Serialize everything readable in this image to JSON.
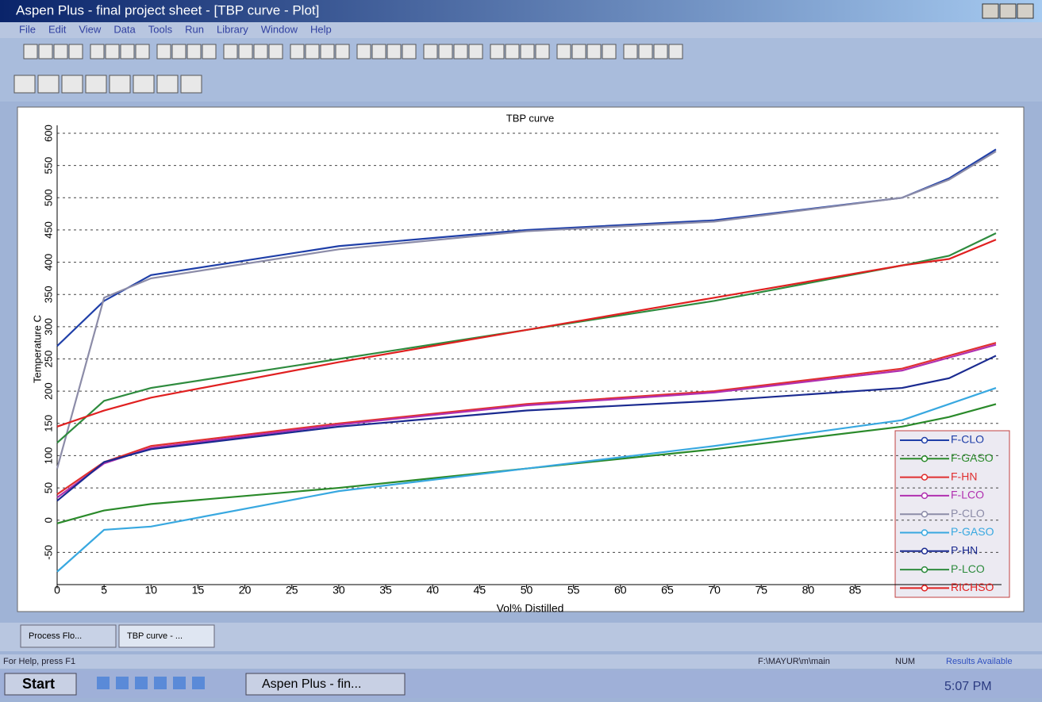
{
  "window": {
    "title": "Aspen Plus - final project sheet - [TBP curve - Plot]",
    "menu": [
      "File",
      "Edit",
      "View",
      "Data",
      "Tools",
      "Run",
      "Library",
      "Window",
      "Help"
    ],
    "tabs": [
      "Process Flo...",
      "TBP curve - ..."
    ],
    "status": [
      "For Help, press F1",
      "F:\\MAYUR\\m\\main",
      "NUM",
      "Results Available"
    ],
    "taskbar": {
      "start": "Start",
      "task": "Aspen Plus - fin...",
      "clock": "5:07 PM"
    }
  },
  "chart_data": {
    "type": "line",
    "title": "TBP curve",
    "x_label": "Vol% Distilled",
    "y_label": "Temperature C",
    "x": [
      0,
      5,
      10,
      30,
      50,
      70,
      90,
      95,
      100
    ],
    "xlim": [
      0,
      100
    ],
    "xticks": [
      0,
      5,
      10,
      15,
      20,
      25,
      30,
      35,
      40,
      45,
      50,
      55,
      60,
      65,
      70,
      75,
      80,
      85
    ],
    "ylim": [
      -100,
      600
    ],
    "yticks": [
      -50,
      0,
      50,
      100,
      150,
      200,
      250,
      300,
      350,
      400,
      450,
      500,
      550,
      600
    ],
    "grid": true,
    "legend": "lower right",
    "series": [
      {
        "name": "F-CLO",
        "color": "#1f3fa8",
        "values": [
          270,
          340,
          380,
          425,
          450,
          465,
          500,
          530,
          575
        ]
      },
      {
        "name": "F-GASO",
        "color": "#2a8a2a",
        "values": [
          -5,
          15,
          25,
          50,
          80,
          110,
          145,
          160,
          180
        ]
      },
      {
        "name": "F-HN",
        "color": "#e03030",
        "values": [
          40,
          90,
          115,
          150,
          180,
          200,
          235,
          255,
          275
        ]
      },
      {
        "name": "F-LCO",
        "color": "#b030b0",
        "values": [
          35,
          88,
          112,
          148,
          178,
          198,
          232,
          252,
          272
        ]
      },
      {
        "name": "P-CLO",
        "color": "#8c8ca8",
        "values": [
          80,
          345,
          375,
          420,
          448,
          463,
          500,
          528,
          572
        ]
      },
      {
        "name": "P-GASO",
        "color": "#38a8e0",
        "values": [
          -80,
          -15,
          -10,
          45,
          80,
          115,
          155,
          180,
          205
        ]
      },
      {
        "name": "P-HN",
        "color": "#1a2a90",
        "values": [
          30,
          90,
          110,
          145,
          170,
          185,
          205,
          220,
          255
        ]
      },
      {
        "name": "P-LCO",
        "color": "#2e8b3e",
        "values": [
          120,
          185,
          205,
          250,
          295,
          340,
          395,
          410,
          445
        ]
      },
      {
        "name": "RICHSO",
        "color": "#e02020",
        "values": [
          145,
          170,
          190,
          245,
          295,
          345,
          395,
          405,
          435
        ]
      }
    ]
  }
}
